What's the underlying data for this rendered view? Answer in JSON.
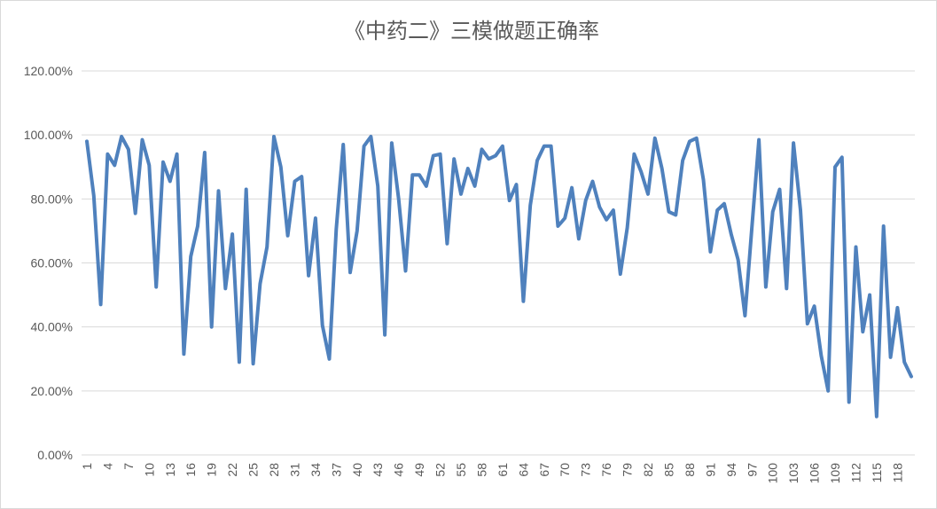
{
  "chart_data": {
    "type": "line",
    "title": "《中药二》三模做题正确率",
    "ylim": [
      0,
      1.2
    ],
    "y_ticks": [
      "0.00%",
      "20.00%",
      "40.00%",
      "60.00%",
      "80.00%",
      "100.00%",
      "120.00%"
    ],
    "x_ticks": [
      "1",
      "4",
      "7",
      "10",
      "13",
      "16",
      "19",
      "22",
      "25",
      "28",
      "31",
      "34",
      "37",
      "40",
      "43",
      "46",
      "49",
      "52",
      "55",
      "58",
      "61",
      "64",
      "67",
      "70",
      "73",
      "76",
      "79",
      "82",
      "85",
      "88",
      "91",
      "94",
      "97",
      "100",
      "103",
      "106",
      "109",
      "112",
      "115",
      "118"
    ],
    "grid": true,
    "legend": "none",
    "color": "#4f81bd",
    "x": [
      1,
      2,
      3,
      4,
      5,
      6,
      7,
      8,
      9,
      10,
      11,
      12,
      13,
      14,
      15,
      16,
      17,
      18,
      19,
      20,
      21,
      22,
      23,
      24,
      25,
      26,
      27,
      28,
      29,
      30,
      31,
      32,
      33,
      34,
      35,
      36,
      37,
      38,
      39,
      40,
      41,
      42,
      43,
      44,
      45,
      46,
      47,
      48,
      49,
      50,
      51,
      52,
      53,
      54,
      55,
      56,
      57,
      58,
      59,
      60,
      61,
      62,
      63,
      64,
      65,
      66,
      67,
      68,
      69,
      70,
      71,
      72,
      73,
      74,
      75,
      76,
      77,
      78,
      79,
      80,
      81,
      82,
      83,
      84,
      85,
      86,
      87,
      88,
      89,
      90,
      91,
      92,
      93,
      94,
      95,
      96,
      97,
      98,
      99,
      100,
      101,
      102,
      103,
      104,
      105,
      106,
      107,
      108,
      109,
      110,
      111,
      112,
      113,
      114,
      115,
      116,
      117,
      118,
      119,
      120
    ],
    "values": [
      0.98,
      0.81,
      0.47,
      0.94,
      0.905,
      0.995,
      0.955,
      0.755,
      0.985,
      0.905,
      0.525,
      0.915,
      0.855,
      0.94,
      0.315,
      0.62,
      0.715,
      0.945,
      0.4,
      0.825,
      0.52,
      0.69,
      0.29,
      0.83,
      0.285,
      0.535,
      0.65,
      0.995,
      0.9,
      0.685,
      0.855,
      0.87,
      0.56,
      0.74,
      0.405,
      0.3,
      0.705,
      0.97,
      0.57,
      0.7,
      0.965,
      0.995,
      0.84,
      0.375,
      0.975,
      0.8,
      0.575,
      0.875,
      0.875,
      0.84,
      0.935,
      0.94,
      0.66,
      0.925,
      0.815,
      0.895,
      0.84,
      0.955,
      0.925,
      0.935,
      0.965,
      0.795,
      0.845,
      0.48,
      0.78,
      0.92,
      0.965,
      0.965,
      0.715,
      0.74,
      0.835,
      0.675,
      0.795,
      0.855,
      0.775,
      0.735,
      0.765,
      0.565,
      0.71,
      0.94,
      0.885,
      0.815,
      0.99,
      0.895,
      0.76,
      0.75,
      0.92,
      0.98,
      0.99,
      0.86,
      0.635,
      0.765,
      0.785,
      0.69,
      0.61,
      0.435,
      0.715,
      0.985,
      0.525,
      0.76,
      0.83,
      0.52,
      0.975,
      0.765,
      0.41,
      0.465,
      0.31,
      0.2,
      0.9,
      0.93,
      0.165,
      0.65,
      0.385,
      0.5,
      0.12,
      0.715,
      0.305,
      0.46,
      0.29,
      0.245
    ]
  }
}
